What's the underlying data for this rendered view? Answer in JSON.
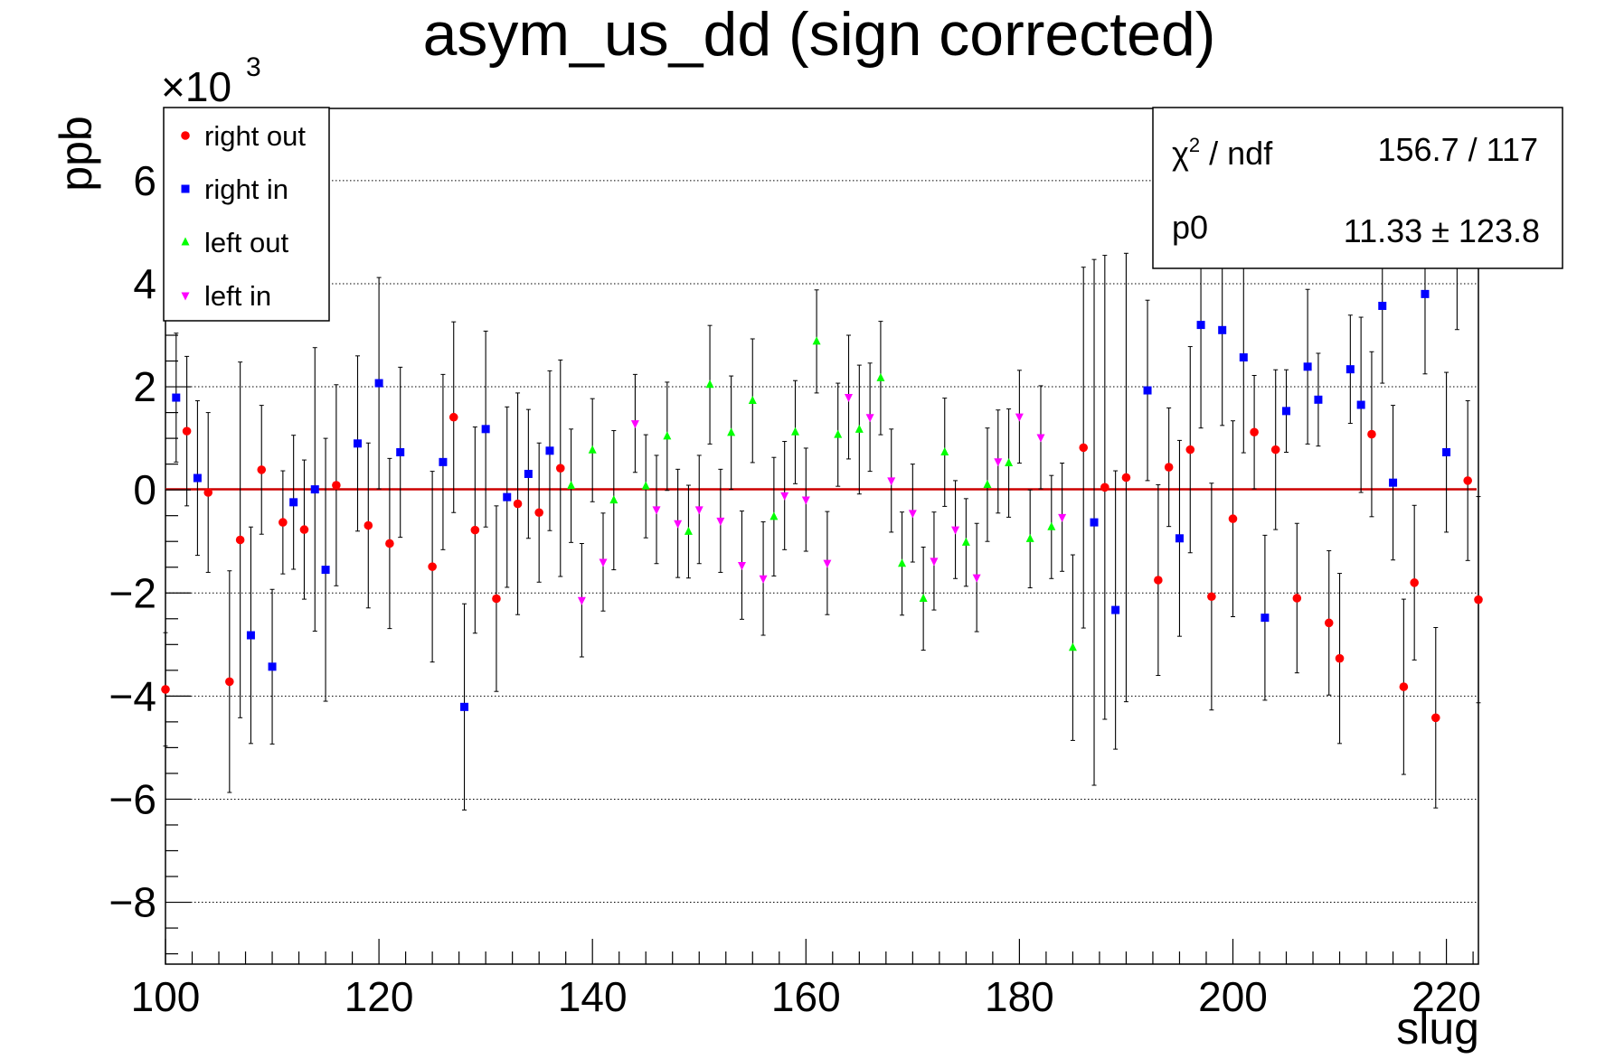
{
  "chart_data": {
    "type": "scatter",
    "title": "asym_us_dd (sign corrected)",
    "xlabel": "slug",
    "ylabel": "ppb",
    "y_multiplier": "×10",
    "y_multiplier_exp": "3",
    "xlim": [
      100,
      223
    ],
    "ylim": [
      -9.2,
      7.4
    ],
    "x_ticks": [
      100,
      120,
      140,
      160,
      180,
      200,
      220
    ],
    "x_tick_labels": [
      "100",
      "120",
      "140",
      "160",
      "180",
      "200",
      "220"
    ],
    "y_ticks": [
      -8,
      -6,
      -4,
      -2,
      0,
      2,
      4,
      6
    ],
    "y_tick_labels": [
      "−8",
      "−6",
      "−4",
      "−2",
      "0",
      "2",
      "4",
      "6"
    ],
    "grid": "horizontal dotted",
    "fit": {
      "type": "constant",
      "value": 0.01133,
      "color": "#cc0000"
    },
    "legend": {
      "position": "top-left",
      "entries": [
        {
          "label": "right out",
          "color": "#ff0000",
          "marker": "circle"
        },
        {
          "label": "right in",
          "color": "#0000ff",
          "marker": "square"
        },
        {
          "label": "left out",
          "color": "#00ff00",
          "marker": "triangle-up"
        },
        {
          "label": "left in",
          "color": "#ff00ff",
          "marker": "triangle-down"
        }
      ]
    },
    "stats": {
      "position": "top-right",
      "chi2_label": "χ",
      "chi2_sup": "2",
      "chi2_rest": " / ndf",
      "chi2_value": "156.7 / 117",
      "p0_label": "p0",
      "p0_value": "11.33 ± 123.8"
    },
    "series": [
      {
        "name": "right out",
        "color": "#ff0000",
        "marker": "circle",
        "points": [
          {
            "x": 100,
            "y": -3.87,
            "err": 1.1
          },
          {
            "x": 102,
            "y": 1.14,
            "err": 1.45
          },
          {
            "x": 104,
            "y": -0.05,
            "err": 1.55
          },
          {
            "x": 106,
            "y": -3.72,
            "err": 2.15
          },
          {
            "x": 107,
            "y": -0.97,
            "err": 3.45
          },
          {
            "x": 109,
            "y": 0.39,
            "err": 1.25
          },
          {
            "x": 111,
            "y": -0.63,
            "err": 1.0
          },
          {
            "x": 113,
            "y": -0.77,
            "err": 1.35
          },
          {
            "x": 116,
            "y": 0.09,
            "err": 1.95
          },
          {
            "x": 119,
            "y": -0.69,
            "err": 1.6
          },
          {
            "x": 121,
            "y": -1.04,
            "err": 1.65
          },
          {
            "x": 125,
            "y": -1.49,
            "err": 1.85
          },
          {
            "x": 127,
            "y": 1.41,
            "err": 1.85
          },
          {
            "x": 129,
            "y": -0.78,
            "err": 2.0
          },
          {
            "x": 131,
            "y": -2.11,
            "err": 1.8
          },
          {
            "x": 133,
            "y": -0.27,
            "err": 2.15
          },
          {
            "x": 135,
            "y": -0.44,
            "err": 1.35
          },
          {
            "x": 137,
            "y": 0.42,
            "err": 2.1
          },
          {
            "x": 186,
            "y": 0.82,
            "err": 3.5
          },
          {
            "x": 188,
            "y": 0.05,
            "err": 4.5
          },
          {
            "x": 190,
            "y": 0.24,
            "err": 4.35
          },
          {
            "x": 193,
            "y": -1.75,
            "err": 1.85
          },
          {
            "x": 194,
            "y": 0.44,
            "err": 1.15
          },
          {
            "x": 196,
            "y": 0.78,
            "err": 2.0
          },
          {
            "x": 198,
            "y": -2.07,
            "err": 2.2
          },
          {
            "x": 200,
            "y": -0.56,
            "err": 1.9
          },
          {
            "x": 202,
            "y": 1.12,
            "err": 1.1
          },
          {
            "x": 204,
            "y": 0.78,
            "err": 1.55
          },
          {
            "x": 206,
            "y": -2.1,
            "err": 1.45
          },
          {
            "x": 209,
            "y": -2.58,
            "err": 1.4
          },
          {
            "x": 210,
            "y": -3.27,
            "err": 1.65
          },
          {
            "x": 213,
            "y": 1.08,
            "err": 1.6
          },
          {
            "x": 216,
            "y": -3.82,
            "err": 1.7
          },
          {
            "x": 217,
            "y": -1.8,
            "err": 1.5
          },
          {
            "x": 219,
            "y": -4.42,
            "err": 1.75
          },
          {
            "x": 222,
            "y": 0.18,
            "err": 1.55
          },
          {
            "x": 223,
            "y": -2.13,
            "err": 2.0
          }
        ]
      },
      {
        "name": "right in",
        "color": "#0000ff",
        "marker": "square",
        "points": [
          {
            "x": 101,
            "y": 1.79,
            "err": 1.25
          },
          {
            "x": 103,
            "y": 0.23,
            "err": 1.5
          },
          {
            "x": 108,
            "y": -2.82,
            "err": 2.1
          },
          {
            "x": 110,
            "y": -3.43,
            "err": 1.5
          },
          {
            "x": 112,
            "y": -0.24,
            "err": 1.3
          },
          {
            "x": 114,
            "y": 0.01,
            "err": 2.75
          },
          {
            "x": 115,
            "y": -1.55,
            "err": 2.55
          },
          {
            "x": 118,
            "y": 0.9,
            "err": 1.7
          },
          {
            "x": 120,
            "y": 2.07,
            "err": 2.05
          },
          {
            "x": 122,
            "y": 0.73,
            "err": 1.65
          },
          {
            "x": 126,
            "y": 0.54,
            "err": 1.7
          },
          {
            "x": 128,
            "y": -4.21,
            "err": 2.0
          },
          {
            "x": 130,
            "y": 1.18,
            "err": 1.9
          },
          {
            "x": 132,
            "y": -0.14,
            "err": 1.75
          },
          {
            "x": 134,
            "y": 0.31,
            "err": 1.25
          },
          {
            "x": 136,
            "y": 0.76,
            "err": 1.55
          },
          {
            "x": 187,
            "y": -0.63,
            "err": 5.1
          },
          {
            "x": 189,
            "y": -2.33,
            "err": 2.7
          },
          {
            "x": 192,
            "y": 1.93,
            "err": 1.75
          },
          {
            "x": 195,
            "y": -0.94,
            "err": 1.9
          },
          {
            "x": 197,
            "y": 3.2,
            "err": 2.0
          },
          {
            "x": 199,
            "y": 3.1,
            "err": 1.85
          },
          {
            "x": 201,
            "y": 2.57,
            "err": 1.85
          },
          {
            "x": 203,
            "y": -2.48,
            "err": 1.6
          },
          {
            "x": 205,
            "y": 1.53,
            "err": 0.8
          },
          {
            "x": 207,
            "y": 2.39,
            "err": 1.5
          },
          {
            "x": 208,
            "y": 1.75,
            "err": 0.9
          },
          {
            "x": 211,
            "y": 2.34,
            "err": 1.05
          },
          {
            "x": 212,
            "y": 1.65,
            "err": 1.7
          },
          {
            "x": 214,
            "y": 3.57,
            "err": 1.5
          },
          {
            "x": 215,
            "y": 0.14,
            "err": 1.5
          },
          {
            "x": 218,
            "y": 3.8,
            "err": 1.55
          },
          {
            "x": 220,
            "y": 0.73,
            "err": 1.55
          },
          {
            "x": 221,
            "y": 4.54,
            "err": 1.43
          }
        ]
      },
      {
        "name": "left out",
        "color": "#00ff00",
        "marker": "triangle-up",
        "points": [
          {
            "x": 138,
            "y": 0.08,
            "err": 1.1
          },
          {
            "x": 140,
            "y": 0.77,
            "err": 1.0
          },
          {
            "x": 142,
            "y": -0.2,
            "err": 1.35
          },
          {
            "x": 145,
            "y": 0.07,
            "err": 1.0
          },
          {
            "x": 147,
            "y": 1.04,
            "err": 1.05
          },
          {
            "x": 149,
            "y": -0.81,
            "err": 0.9
          },
          {
            "x": 151,
            "y": 2.04,
            "err": 1.15
          },
          {
            "x": 153,
            "y": 1.11,
            "err": 1.1
          },
          {
            "x": 155,
            "y": 1.73,
            "err": 1.2
          },
          {
            "x": 157,
            "y": -0.52,
            "err": 1.15
          },
          {
            "x": 159,
            "y": 1.12,
            "err": 1.0
          },
          {
            "x": 161,
            "y": 2.88,
            "err": 1.0
          },
          {
            "x": 163,
            "y": 1.07,
            "err": 1.0
          },
          {
            "x": 165,
            "y": 1.17,
            "err": 1.25
          },
          {
            "x": 167,
            "y": 2.17,
            "err": 1.1
          },
          {
            "x": 169,
            "y": -1.43,
            "err": 1.0
          },
          {
            "x": 171,
            "y": -2.11,
            "err": 1.0
          },
          {
            "x": 173,
            "y": 0.73,
            "err": 1.05
          },
          {
            "x": 175,
            "y": -1.02,
            "err": 0.85
          },
          {
            "x": 177,
            "y": 0.1,
            "err": 1.1
          },
          {
            "x": 179,
            "y": 0.52,
            "err": 1.05
          },
          {
            "x": 181,
            "y": -0.95,
            "err": 0.95
          },
          {
            "x": 183,
            "y": -0.72,
            "err": 1.0
          },
          {
            "x": 185,
            "y": -3.06,
            "err": 1.8
          }
        ]
      },
      {
        "name": "left in",
        "color": "#ff00ff",
        "marker": "triangle-down",
        "points": [
          {
            "x": 139,
            "y": -2.14,
            "err": 1.1
          },
          {
            "x": 141,
            "y": -1.4,
            "err": 0.95
          },
          {
            "x": 144,
            "y": 1.29,
            "err": 0.95
          },
          {
            "x": 146,
            "y": -0.38,
            "err": 1.05
          },
          {
            "x": 148,
            "y": -0.65,
            "err": 1.05
          },
          {
            "x": 150,
            "y": -0.38,
            "err": 1.05
          },
          {
            "x": 152,
            "y": -0.6,
            "err": 1.0
          },
          {
            "x": 154,
            "y": -1.46,
            "err": 1.05
          },
          {
            "x": 156,
            "y": -1.72,
            "err": 1.1
          },
          {
            "x": 158,
            "y": -0.11,
            "err": 1.05
          },
          {
            "x": 160,
            "y": -0.19,
            "err": 1.0
          },
          {
            "x": 162,
            "y": -1.42,
            "err": 1.0
          },
          {
            "x": 164,
            "y": 1.8,
            "err": 1.2
          },
          {
            "x": 166,
            "y": 1.41,
            "err": 1.05
          },
          {
            "x": 168,
            "y": 0.18,
            "err": 1.0
          },
          {
            "x": 170,
            "y": -0.45,
            "err": 0.95
          },
          {
            "x": 172,
            "y": -1.38,
            "err": 0.95
          },
          {
            "x": 174,
            "y": -0.77,
            "err": 0.95
          },
          {
            "x": 176,
            "y": -1.7,
            "err": 1.05
          },
          {
            "x": 178,
            "y": 0.55,
            "err": 1.0
          },
          {
            "x": 180,
            "y": 1.42,
            "err": 0.9
          },
          {
            "x": 182,
            "y": 1.02,
            "err": 1.0
          },
          {
            "x": 184,
            "y": -0.53,
            "err": 1.05
          }
        ]
      }
    ]
  }
}
